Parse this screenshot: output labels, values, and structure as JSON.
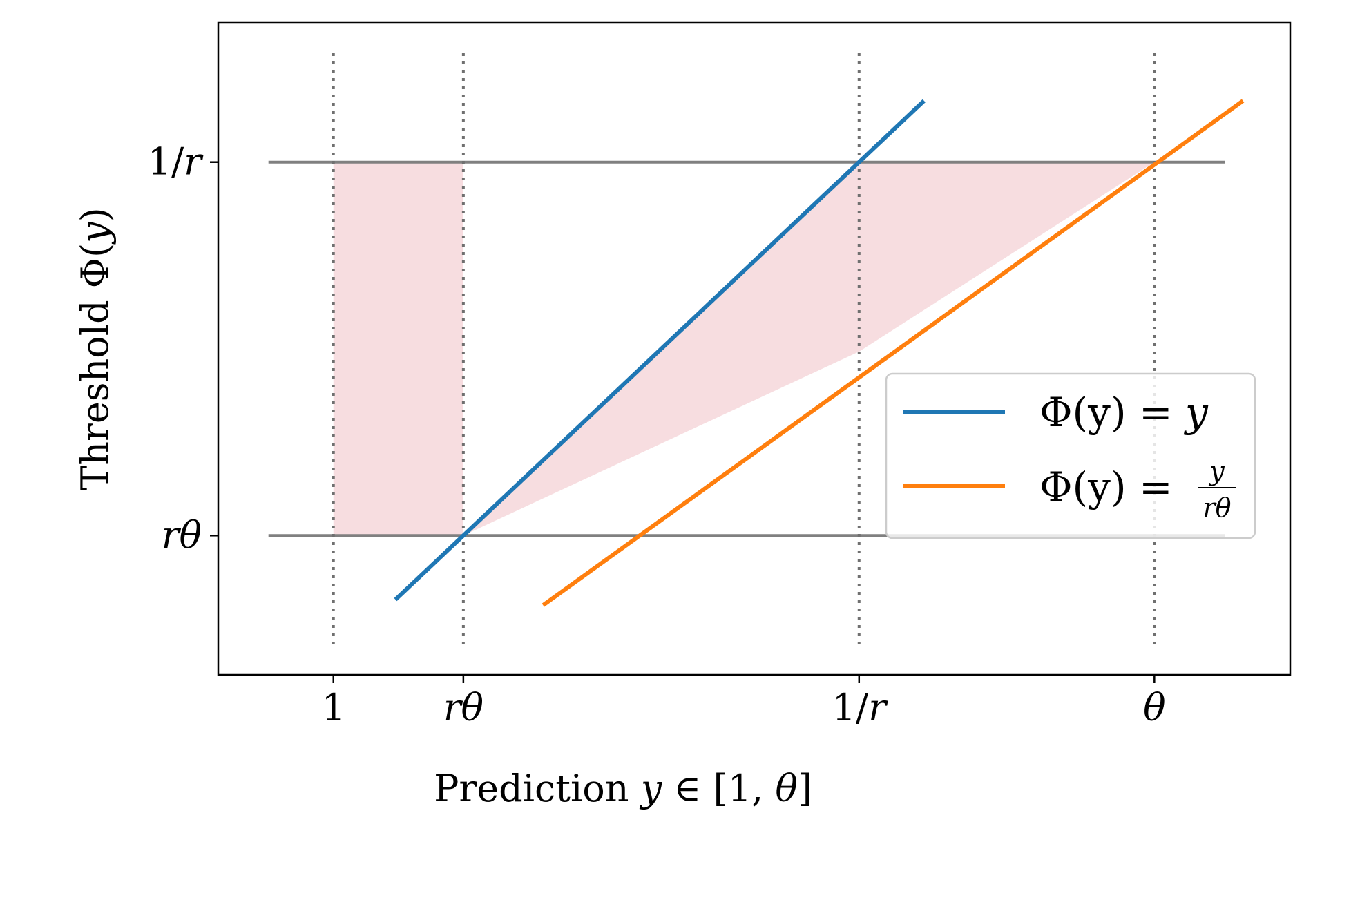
{
  "chart_data": {
    "type": "line",
    "xlabel": {
      "text": "Prediction",
      "var": "y",
      "rel": "∈",
      "open": "[",
      "one": "1",
      "comma": ",",
      "theta": "θ",
      "close": "]"
    },
    "ylabel": {
      "text": "Threshold",
      "phi": "Φ",
      "open": "(",
      "var": "y",
      "close": ")"
    },
    "x_ticks": [
      {
        "label": "1",
        "value": 1.0
      },
      {
        "label": "rθ",
        "value": 1.44
      },
      {
        "label": "1/r",
        "value": 2.78
      },
      {
        "label": "θ",
        "value": 3.78
      }
    ],
    "y_ticks": [
      {
        "label": "rθ",
        "value": 1.44
      },
      {
        "label": "1/r",
        "value": 2.78
      }
    ],
    "xlim": [
      0.61,
      4.24
    ],
    "ylim": [
      0.94,
      3.28
    ],
    "vlines": [
      1.0,
      1.44,
      2.78,
      3.78
    ],
    "hlines": {
      "values": [
        1.44,
        2.78
      ],
      "xmin": 0.78,
      "xmax": 4.02
    },
    "shaded_regions": [
      {
        "x": [
          1.0,
          1.44
        ],
        "y_lower": [
          1.44,
          1.44
        ],
        "y_upper": [
          2.78,
          2.78
        ],
        "color": "#f7dde0"
      },
      {
        "x": [
          1.44,
          2.78,
          3.78
        ],
        "y_lower": [
          1.44,
          2.1,
          2.78
        ],
        "y_upper": [
          1.44,
          2.78,
          2.78
        ],
        "color": "#f7dde0"
      }
    ],
    "series": [
      {
        "name": "Φ(y) = y",
        "color": "#1f77b4",
        "x": [
          1.21,
          3.0
        ],
        "y": [
          1.21,
          3.0
        ]
      },
      {
        "name": "Φ(y) = y/(rθ)",
        "color": "#ff7f0e",
        "x": [
          1.71,
          4.08
        ],
        "y": [
          1.19,
          3.0
        ]
      }
    ],
    "legend": {
      "placement": "right",
      "entries": [
        {
          "lhs": "Φ(y) = ",
          "rhs": "y"
        },
        {
          "lhs": "Φ(y) = ",
          "num": "y",
          "den": "rθ"
        }
      ]
    },
    "grid": false,
    "colors": {
      "guide": "#808080",
      "vline": "#707070",
      "axis": "#000000"
    }
  }
}
